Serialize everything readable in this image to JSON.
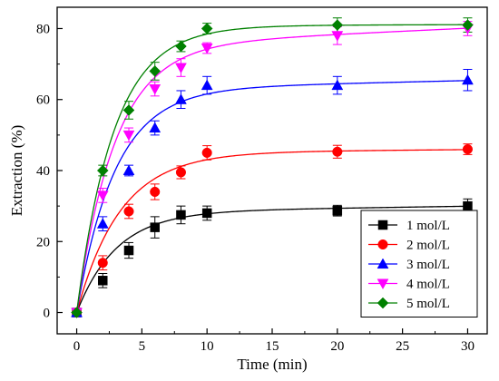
{
  "chart_data": {
    "type": "line",
    "xlabel": "Time (min)",
    "ylabel": "Extraction (%)",
    "xlim": [
      -1.5,
      31.5
    ],
    "ylim": [
      -6,
      86
    ],
    "xticks": [
      0,
      5,
      10,
      15,
      20,
      25,
      30
    ],
    "yticks": [
      0,
      20,
      40,
      60,
      80
    ],
    "x": [
      0,
      2,
      4,
      6,
      8,
      10,
      20,
      30
    ],
    "legend_position": "bottom-right",
    "grid": false,
    "series": [
      {
        "name": "1 mol/L",
        "marker": "square",
        "color": "#000000",
        "values": [
          0,
          9,
          17.5,
          24,
          27.5,
          28,
          28.7,
          30
        ],
        "errors": [
          0,
          2,
          2.2,
          3,
          2.5,
          2,
          1.5,
          2
        ],
        "fit": {
          "a": 28.3,
          "k": 0.33,
          "b": 0.055
        }
      },
      {
        "name": "2 mol/L",
        "marker": "circle",
        "color": "#ff0000",
        "values": [
          0,
          14,
          28.5,
          34,
          39.5,
          45,
          45.3,
          46
        ],
        "errors": [
          0,
          2,
          2,
          2.2,
          1.8,
          2,
          1.8,
          1.5
        ],
        "fit": {
          "a": 45.0,
          "k": 0.3,
          "b": 0.03
        }
      },
      {
        "name": "3 mol/L",
        "marker": "triangle-up",
        "color": "#0000ff",
        "values": [
          0,
          25,
          40,
          52,
          60,
          64,
          64,
          65.5
        ],
        "errors": [
          0,
          2,
          1.5,
          2,
          2.5,
          2.5,
          2.5,
          3
        ],
        "fit": {
          "a": 62.8,
          "k": 0.34,
          "b": 0.085
        }
      },
      {
        "name": "4 mol/L",
        "marker": "triangle-down",
        "color": "#ff00ff",
        "values": [
          0,
          33,
          50,
          63,
          69,
          74.5,
          78,
          80
        ],
        "errors": [
          0,
          2,
          2,
          2,
          2.5,
          1.5,
          2.5,
          2
        ],
        "fit": {
          "a": 75.0,
          "k": 0.34,
          "b": 0.17
        }
      },
      {
        "name": "5 mol/L",
        "marker": "diamond",
        "color": "#008000",
        "values": [
          0,
          40,
          57,
          68,
          75,
          80,
          81,
          81
        ],
        "errors": [
          0,
          1.5,
          2.5,
          2.5,
          1.5,
          1.5,
          2,
          2
        ],
        "fit": {
          "a": 80.8,
          "k": 0.35,
          "b": 0.01
        }
      }
    ]
  }
}
